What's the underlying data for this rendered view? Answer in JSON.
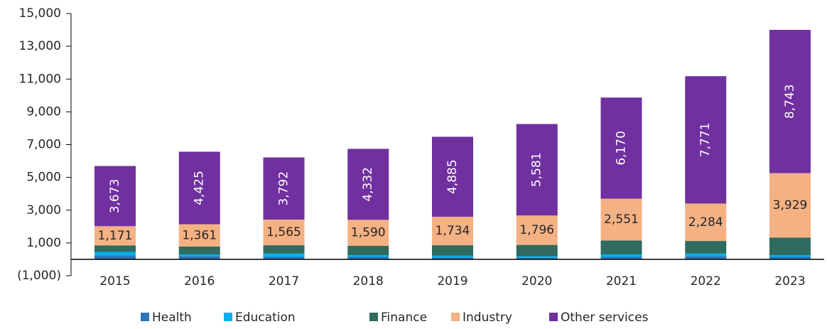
{
  "chart_data": {
    "type": "stacked_bar",
    "categories": [
      "2015",
      "2016",
      "2017",
      "2018",
      "2019",
      "2020",
      "2021",
      "2022",
      "2023"
    ],
    "series": [
      {
        "name": "Health",
        "color": "#2e75b6",
        "values": [
          250,
          200,
          150,
          150,
          120,
          100,
          150,
          200,
          150
        ]
      },
      {
        "name": "Education",
        "color": "#00b0f0",
        "values": [
          200,
          100,
          200,
          100,
          100,
          80,
          150,
          150,
          100
        ]
      },
      {
        "name": "Finance",
        "color": "#2f6b5e",
        "values": [
          400,
          480,
          510,
          570,
          640,
          700,
          850,
          770,
          1080
        ]
      },
      {
        "name": "Industry",
        "color": "#f4b183",
        "values": [
          1171,
          1361,
          1565,
          1590,
          1734,
          1796,
          2551,
          2284,
          3929
        ],
        "value_labels": [
          "1,171",
          "1,361",
          "1,565",
          "1,590",
          "1,734",
          "1,796",
          "2,551",
          "2,284",
          "3,929"
        ]
      },
      {
        "name": "Other services",
        "color": "#7030a0",
        "values": [
          3673,
          4425,
          3792,
          4332,
          4885,
          5581,
          6170,
          7771,
          8743
        ],
        "value_labels": [
          "3,673",
          "4,425",
          "3,792",
          "4,332",
          "4,885",
          "5,581",
          "6,170",
          "7,771",
          "8,743"
        ]
      }
    ],
    "ylim": [
      -1000,
      15000
    ],
    "yticks": [
      {
        "value": -1000,
        "label": "(1,000)"
      },
      {
        "value": 1000,
        "label": "1,000"
      },
      {
        "value": 3000,
        "label": "3,000"
      },
      {
        "value": 5000,
        "label": "5,000"
      },
      {
        "value": 7000,
        "label": "7,000"
      },
      {
        "value": 9000,
        "label": "9,000"
      },
      {
        "value": 11000,
        "label": "11,000"
      },
      {
        "value": 13000,
        "label": "13,000"
      },
      {
        "value": 15000,
        "label": "15,000"
      }
    ],
    "grid": false,
    "legend": "bottom"
  }
}
